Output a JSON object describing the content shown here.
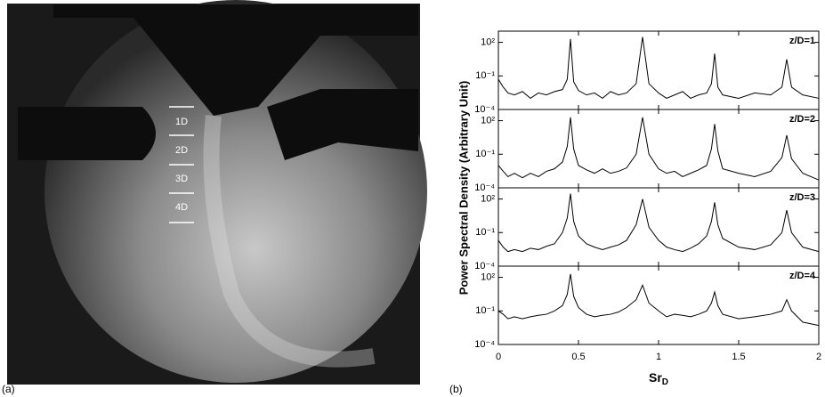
{
  "photo": {
    "panel_label": "(a)",
    "scale_labels": [
      "1D",
      "2D",
      "3D",
      "4D"
    ]
  },
  "panel_b_label": "(b)",
  "chart_data": [
    {
      "type": "line",
      "annotation": "z/D=1",
      "ylabel": "Power Spectral Density (Arbitrary Unit)",
      "log_y": true,
      "color": "#000000",
      "xlim": [
        0,
        2
      ],
      "xticks": [
        0,
        0.5,
        1,
        1.5,
        2
      ],
      "ylim": [
        0.0001,
        1000
      ],
      "yticks": [
        {
          "value": 0.0001,
          "label": "10⁻⁴"
        },
        {
          "value": 0.1,
          "label": "10⁻¹"
        },
        {
          "value": 100,
          "label": "10²"
        }
      ],
      "x": [
        0,
        0.03,
        0.06,
        0.1,
        0.15,
        0.2,
        0.25,
        0.3,
        0.35,
        0.4,
        0.43,
        0.45,
        0.47,
        0.5,
        0.55,
        0.6,
        0.65,
        0.7,
        0.75,
        0.8,
        0.86,
        0.9,
        0.94,
        1.0,
        1.05,
        1.1,
        1.15,
        1.2,
        1.25,
        1.3,
        1.33,
        1.35,
        1.37,
        1.4,
        1.5,
        1.6,
        1.7,
        1.77,
        1.8,
        1.83,
        1.9,
        2.0
      ],
      "values": [
        0.05,
        0.01,
        0.003,
        0.002,
        0.004,
        0.001,
        0.003,
        0.002,
        0.004,
        0.006,
        0.05,
        200,
        0.03,
        0.005,
        0.002,
        0.003,
        0.001,
        0.004,
        0.002,
        0.003,
        0.02,
        300,
        0.02,
        0.003,
        0.001,
        0.002,
        0.004,
        0.001,
        0.002,
        0.003,
        0.02,
        10,
        0.01,
        0.002,
        0.001,
        0.003,
        0.002,
        0.01,
        3,
        0.01,
        0.002,
        0.001
      ]
    },
    {
      "type": "line",
      "annotation": "z/D=2",
      "log_y": true,
      "color": "#000000",
      "xlim": [
        0,
        2
      ],
      "xticks": [
        0,
        0.5,
        1,
        1.5,
        2
      ],
      "ylim": [
        0.0001,
        1000
      ],
      "yticks": [
        {
          "value": 0.0001,
          "label": "10⁻⁴"
        },
        {
          "value": 0.1,
          "label": "10⁻¹"
        },
        {
          "value": 100,
          "label": "10²"
        }
      ],
      "x": [
        0,
        0.03,
        0.06,
        0.1,
        0.15,
        0.2,
        0.25,
        0.3,
        0.35,
        0.4,
        0.43,
        0.45,
        0.47,
        0.5,
        0.55,
        0.6,
        0.65,
        0.7,
        0.75,
        0.8,
        0.86,
        0.9,
        0.94,
        1.0,
        1.05,
        1.1,
        1.15,
        1.2,
        1.25,
        1.3,
        1.33,
        1.35,
        1.37,
        1.4,
        1.5,
        1.6,
        1.7,
        1.77,
        1.8,
        1.83,
        1.9,
        2.0
      ],
      "values": [
        0.01,
        0.003,
        0.001,
        0.002,
        0.0008,
        0.002,
        0.001,
        0.003,
        0.005,
        0.02,
        0.5,
        200,
        0.3,
        0.01,
        0.004,
        0.002,
        0.005,
        0.002,
        0.003,
        0.006,
        0.1,
        200,
        0.1,
        0.005,
        0.002,
        0.003,
        0.001,
        0.002,
        0.004,
        0.01,
        0.3,
        50,
        0.2,
        0.005,
        0.002,
        0.001,
        0.003,
        0.05,
        5,
        0.04,
        0.002,
        0.0005
      ]
    },
    {
      "type": "line",
      "annotation": "z/D=3",
      "log_y": true,
      "color": "#000000",
      "xlim": [
        0,
        2
      ],
      "xticks": [
        0,
        0.5,
        1,
        1.5,
        2
      ],
      "ylim": [
        0.0001,
        1000
      ],
      "yticks": [
        {
          "value": 0.0001,
          "label": "10⁻⁴"
        },
        {
          "value": 0.1,
          "label": "10⁻¹"
        },
        {
          "value": 100,
          "label": "10²"
        }
      ],
      "x": [
        0,
        0.03,
        0.06,
        0.1,
        0.15,
        0.2,
        0.25,
        0.3,
        0.35,
        0.4,
        0.43,
        0.45,
        0.47,
        0.5,
        0.55,
        0.6,
        0.65,
        0.7,
        0.75,
        0.8,
        0.86,
        0.9,
        0.94,
        1.0,
        1.05,
        1.1,
        1.15,
        1.2,
        1.25,
        1.3,
        1.33,
        1.35,
        1.37,
        1.4,
        1.5,
        1.6,
        1.7,
        1.77,
        1.8,
        1.83,
        1.9,
        2.0
      ],
      "values": [
        0.02,
        0.005,
        0.002,
        0.003,
        0.002,
        0.004,
        0.003,
        0.006,
        0.01,
        0.1,
        2,
        300,
        1,
        0.05,
        0.01,
        0.005,
        0.003,
        0.005,
        0.008,
        0.02,
        0.5,
        100,
        0.3,
        0.02,
        0.005,
        0.003,
        0.002,
        0.004,
        0.01,
        0.05,
        1,
        50,
        0.5,
        0.03,
        0.005,
        0.003,
        0.008,
        0.1,
        10,
        0.1,
        0.005,
        0.002
      ]
    },
    {
      "type": "line",
      "annotation": "z/D=4",
      "xlabel": "Sr",
      "xlabel_subscript": "D",
      "log_y": true,
      "color": "#000000",
      "xlim": [
        0,
        2
      ],
      "xticks": [
        0,
        0.5,
        1,
        1.5,
        2
      ],
      "ylim": [
        0.0001,
        1000
      ],
      "yticks": [
        {
          "value": 0.0001,
          "label": "10⁻⁴"
        },
        {
          "value": 0.1,
          "label": "10⁻¹"
        },
        {
          "value": 100,
          "label": "10²"
        }
      ],
      "x": [
        0,
        0.03,
        0.06,
        0.1,
        0.15,
        0.2,
        0.25,
        0.3,
        0.35,
        0.4,
        0.43,
        0.45,
        0.47,
        0.5,
        0.55,
        0.6,
        0.65,
        0.7,
        0.75,
        0.8,
        0.86,
        0.9,
        0.94,
        1.0,
        1.05,
        1.1,
        1.15,
        1.2,
        1.25,
        1.3,
        1.33,
        1.35,
        1.37,
        1.4,
        1.5,
        1.6,
        1.7,
        1.77,
        1.8,
        1.83,
        1.9,
        2.0
      ],
      "values": [
        0.1,
        0.05,
        0.02,
        0.03,
        0.02,
        0.03,
        0.04,
        0.05,
        0.1,
        0.3,
        3,
        200,
        2,
        0.2,
        0.05,
        0.03,
        0.04,
        0.05,
        0.08,
        0.2,
        1,
        20,
        0.5,
        0.1,
        0.03,
        0.05,
        0.04,
        0.03,
        0.05,
        0.1,
        0.5,
        5,
        0.3,
        0.05,
        0.02,
        0.03,
        0.05,
        0.1,
        1,
        0.1,
        0.01,
        0.005
      ]
    }
  ]
}
